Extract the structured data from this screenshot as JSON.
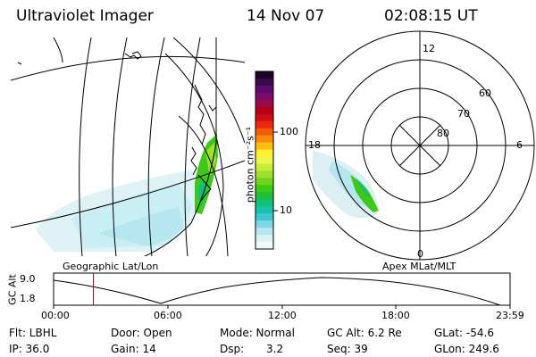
{
  "header": {
    "title": "Ultraviolet Imager",
    "date": "14 Nov 07",
    "time": "02:08:15 UT"
  },
  "colorbar": {
    "unit_label": "photon cm⁻²s⁻¹",
    "ticks": [
      "100",
      "10"
    ],
    "colors": [
      "#1a0526",
      "#3a0a4a",
      "#5a0a6a",
      "#7a0a6a",
      "#9a0a4a",
      "#b3001a",
      "#d10a14",
      "#ea2a0e",
      "#f5590a",
      "#fb8c0a",
      "#fdbf10",
      "#fff030",
      "#eef44c",
      "#c8ec3a",
      "#9ee02c",
      "#6ed41e",
      "#3ec818",
      "#1fbf3a",
      "#13c078",
      "#16c3aa",
      "#3ec8d0",
      "#7fd6e4",
      "#b6e6ef",
      "#dcf0f4",
      "#f0f8fa"
    ]
  },
  "left_panel": {
    "label": "Geographic Lat/Lon"
  },
  "right_panel": {
    "label": "Apex MLat/MLT",
    "mlt_labels": {
      "top": "12",
      "left": "18",
      "right": "6",
      "bottom": "0"
    },
    "lat_labels": [
      "60",
      "70",
      "80"
    ]
  },
  "orbit": {
    "axis_label": "GC Alt",
    "y_ticks": [
      "9.0",
      "1.8"
    ],
    "x_ticks": [
      "00:00",
      "06:00",
      "12:00",
      "18:00",
      "23:59"
    ],
    "current_time_fraction": 0.087,
    "marker_color": "#cc0000"
  },
  "info": {
    "filter": "Flt: LBHL",
    "door": "Door: Open",
    "mode": "Mode: Normal",
    "gc_alt": "GC Alt: 6.2 Re",
    "glat": "GLat: -54.6",
    "ip": "IP: 36.0",
    "gain": "Gain: 14",
    "dsp_label": "Dsp:",
    "dsp_value": "3.2",
    "seq": "Seq: 39",
    "glon": "GLon: 249.6"
  }
}
